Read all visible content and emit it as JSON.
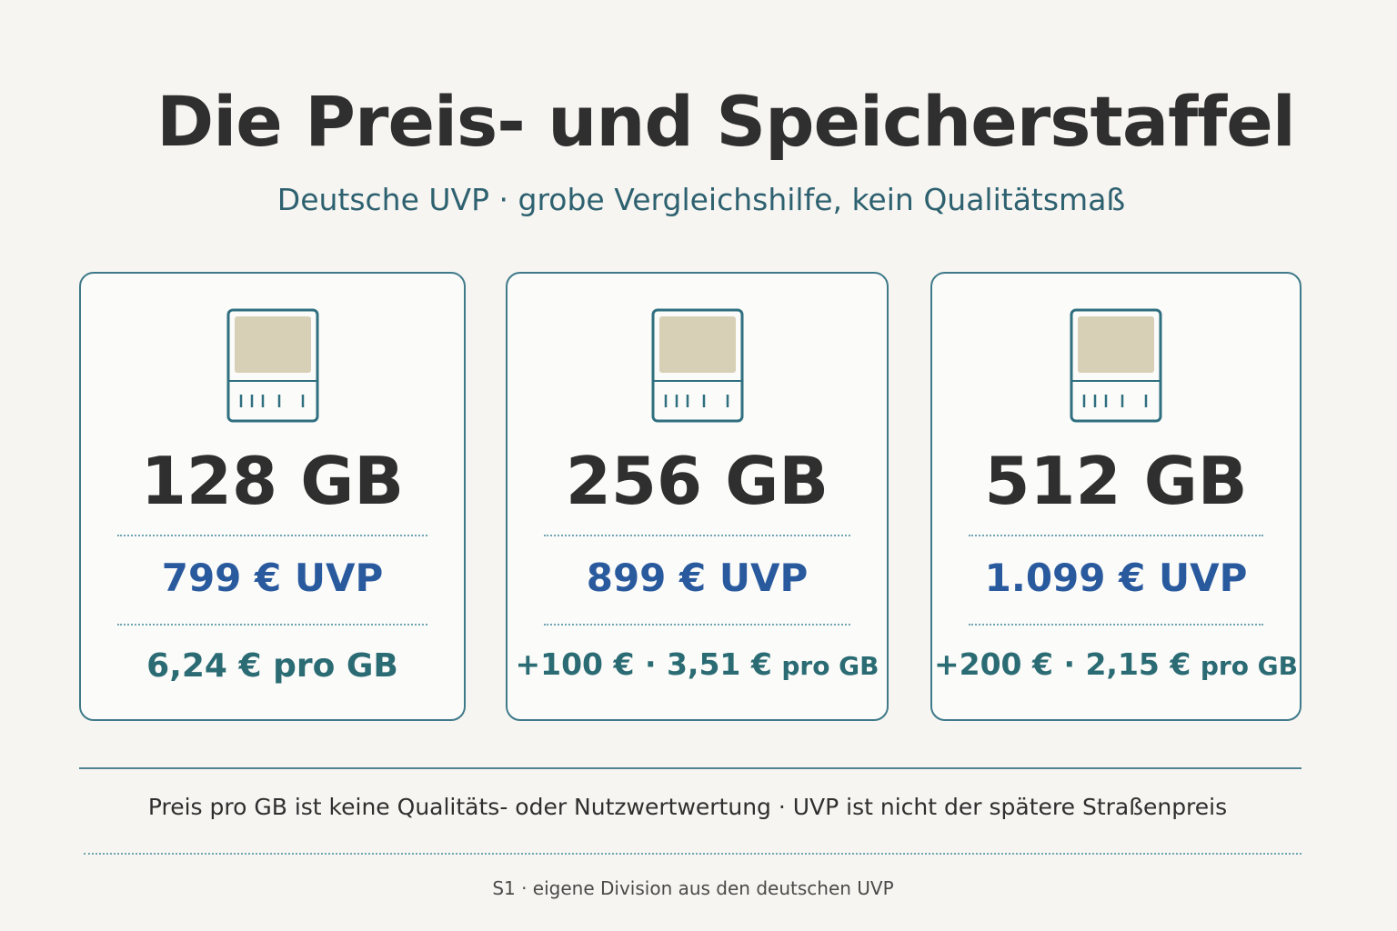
{
  "header": {
    "title": "Die Preis- und Speicherstaffel",
    "subtitle": "Deutsche UVP · grobe Vergleichshilfe, kein Qualitätsmaß"
  },
  "cards": [
    {
      "icon": "memory-chip-icon",
      "capacity": "128 GB",
      "price": "799 € UVP",
      "per_gb_main": "6,24 € pro GB",
      "per_gb_unit": ""
    },
    {
      "icon": "memory-chip-icon",
      "capacity": "256 GB",
      "price": "899 € UVP",
      "per_gb_main": "+100 € · 3,51 €",
      "per_gb_unit": "pro GB"
    },
    {
      "icon": "memory-chip-icon",
      "capacity": "512 GB",
      "price": "1.099 € UVP",
      "per_gb_main": "+200 € · 2,15 €",
      "per_gb_unit": "pro GB"
    }
  ],
  "footer": {
    "note": "Preis pro GB ist keine Qualitäts- oder Nutzwertwertung · UVP ist nicht der spätere Straßenpreis",
    "source": "S1 · eigene Division aus den deutschen UVP"
  },
  "colors": {
    "background": "#f6f5f1",
    "card_border": "#3f7a8a",
    "price": "#2a5a9e",
    "per_gb": "#2b6b74",
    "chip_fill": "#d8d0b6"
  }
}
